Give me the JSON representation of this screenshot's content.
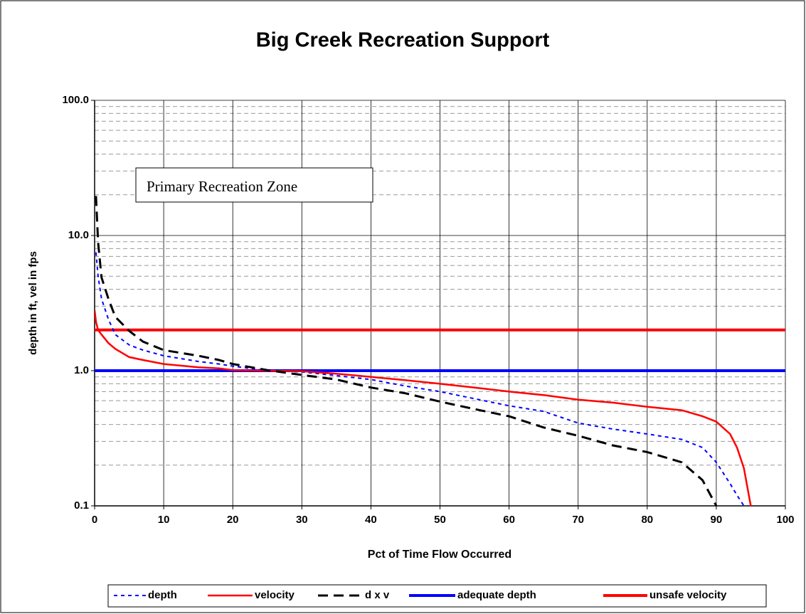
{
  "chart_data": {
    "type": "line",
    "title": "Big Creek Recreation Support",
    "x_label": "Pct of Time Flow Occurred",
    "y_label": "depth in ft, vel in fps",
    "annotation": "Primary Recreation Zone",
    "y_scale": "log",
    "grid": true,
    "legend": "bottom",
    "xlim": [
      0,
      100
    ],
    "xticks": [
      0,
      10,
      20,
      30,
      40,
      50,
      60,
      70,
      80,
      90,
      100
    ],
    "ylim": [
      0.1,
      100
    ],
    "yticks": [
      0.1,
      {
        "value": 1,
        "label": "1.0"
      },
      {
        "value": 10,
        "label": "10.0"
      },
      {
        "value": 100,
        "label": "100.0"
      }
    ],
    "x": [
      0,
      0.2,
      0.5,
      1,
      2,
      3,
      5,
      7,
      10,
      15,
      18,
      20,
      25,
      30,
      35,
      40,
      45,
      50,
      55,
      60,
      65,
      70,
      75,
      80,
      85,
      88,
      90,
      92,
      93,
      94,
      95
    ],
    "series": [
      {
        "name": "depth",
        "color": "#0000ff",
        "dash": "dotted",
        "values": [
          null,
          7.5,
          5,
          3.4,
          2.4,
          1.85,
          1.55,
          1.42,
          1.29,
          1.17,
          1.12,
          1.08,
          1.0,
          0.98,
          0.92,
          0.86,
          0.77,
          0.7,
          0.62,
          0.55,
          0.5,
          0.41,
          0.37,
          0.34,
          0.31,
          0.27,
          0.21,
          0.146,
          0.12,
          0.1,
          null
        ]
      },
      {
        "name": "velocity",
        "color": "#ff0000",
        "dash": "solid",
        "values": [
          2.8,
          2.3,
          2.0,
          1.85,
          1.6,
          1.45,
          1.26,
          1.2,
          1.12,
          1.06,
          1.04,
          1.01,
          1.0,
          0.99,
          0.95,
          0.9,
          0.85,
          0.8,
          0.75,
          0.7,
          0.66,
          0.61,
          0.58,
          0.54,
          0.51,
          0.46,
          0.42,
          0.34,
          0.27,
          0.19,
          0.1
        ]
      },
      {
        "name": "d x v",
        "color": "#000000",
        "dash": "dashed",
        "values": [
          null,
          19.6,
          8.9,
          4.9,
          3.4,
          2.5,
          1.97,
          1.64,
          1.42,
          1.29,
          1.2,
          1.12,
          1.01,
          0.93,
          0.86,
          0.75,
          0.68,
          0.59,
          0.52,
          0.46,
          0.38,
          0.33,
          0.28,
          0.25,
          0.21,
          0.155,
          0.1,
          null,
          null,
          null,
          null
        ]
      }
    ],
    "reference_lines": [
      {
        "name": "adequate depth",
        "color": "#0000ff",
        "value": 1
      },
      {
        "name": "unsafe velocity",
        "color": "#ff0000",
        "value": 2
      }
    ]
  }
}
